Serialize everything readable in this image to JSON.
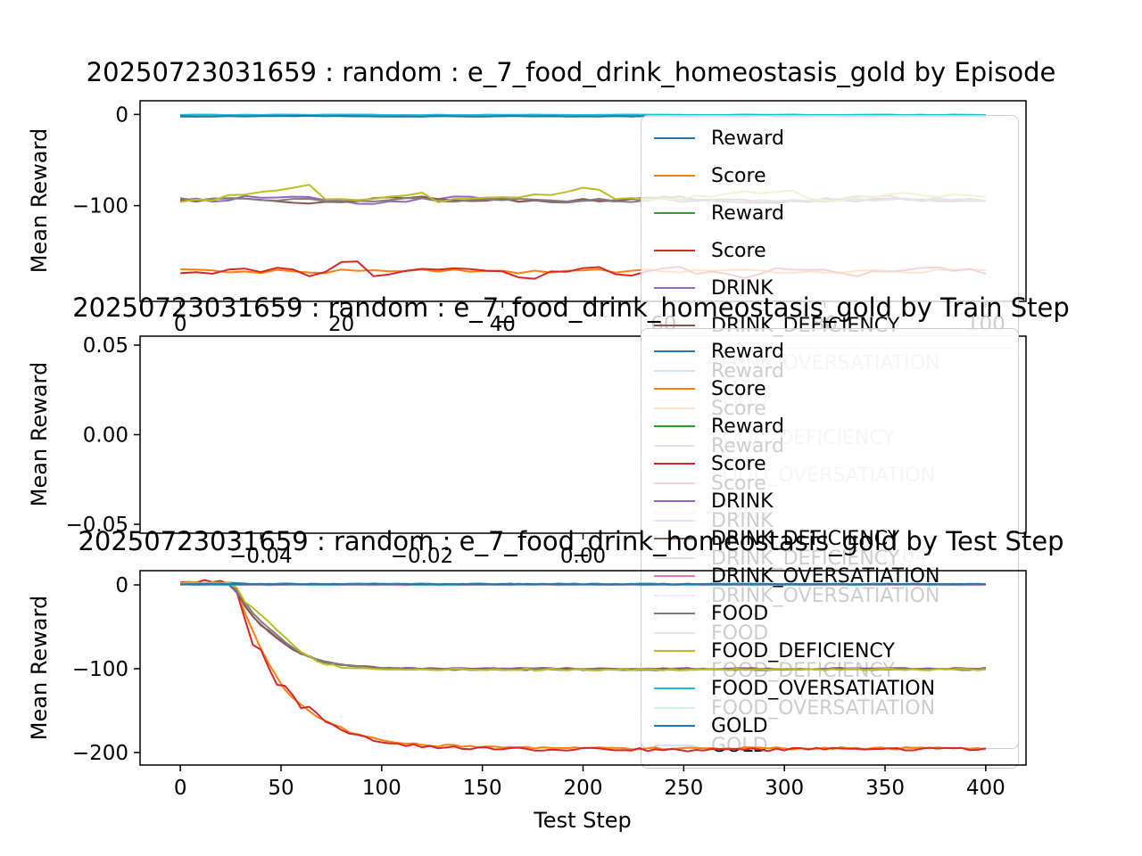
{
  "chart_data": [
    {
      "type": "line",
      "title": "20250723031659 : random : e_7_food_drink_homeostasis_gold by Episode",
      "xlabel": "",
      "ylabel": "Mean Reward",
      "xlim": [
        -5,
        105
      ],
      "ylim": [
        -205,
        15
      ],
      "xticks": [
        "0",
        "20",
        "40",
        "60",
        "80",
        "100"
      ],
      "xtick_vals": [
        0,
        20,
        40,
        60,
        80,
        100
      ],
      "yticks": [
        "0",
        "−100"
      ],
      "ytick_vals": [
        0,
        -100
      ],
      "grid": false,
      "legend_position": "upper right overflowing",
      "sample_step": 2,
      "series": [
        {
          "label": "Reward",
          "color": "#1f77b4",
          "jitter": 0.9,
          "points": [
            [
              0,
              -1.5
            ],
            [
              100,
              -1.5
            ]
          ]
        },
        {
          "label": "Score",
          "color": "#ff7f0e",
          "jitter": 2.2,
          "points": [
            [
              0,
              -172
            ],
            [
              100,
              -172
            ]
          ]
        },
        {
          "label": "Reward",
          "color": "#2ca02c",
          "jitter": 0.7,
          "points": [
            [
              0,
              -1
            ],
            [
              100,
              -1
            ]
          ]
        },
        {
          "label": "Score",
          "color": "#d62728",
          "jitter": 3.5,
          "points": [
            [
              0,
              -174
            ],
            [
              14,
              -168
            ],
            [
              16,
              -176
            ],
            [
              22,
              -160
            ],
            [
              24,
              -175
            ],
            [
              34,
              -170
            ],
            [
              44,
              -178
            ],
            [
              52,
              -165
            ],
            [
              54,
              -176
            ],
            [
              62,
              -170
            ],
            [
              70,
              -177
            ],
            [
              76,
              -168
            ],
            [
              84,
              -176
            ],
            [
              92,
              -170
            ],
            [
              100,
              -173
            ]
          ]
        },
        {
          "label": "DRINK",
          "color": "#9467bd",
          "jitter": 2.6,
          "points": [
            [
              0,
              -95
            ],
            [
              12,
              -90
            ],
            [
              22,
              -97
            ],
            [
              36,
              -91
            ],
            [
              48,
              -96
            ],
            [
              60,
              -92
            ],
            [
              72,
              -97
            ],
            [
              86,
              -91
            ],
            [
              100,
              -95
            ]
          ]
        },
        {
          "label": "DRINK_DEFICIENCY",
          "color": "#8c564b",
          "jitter": 2.6,
          "points": [
            [
              0,
              -93
            ],
            [
              18,
              -96
            ],
            [
              30,
              -90
            ],
            [
              44,
              -96
            ],
            [
              58,
              -91
            ],
            [
              74,
              -96
            ],
            [
              88,
              -92
            ],
            [
              100,
              -94
            ]
          ]
        },
        {
          "label": "DRINK_OVERSATIATION",
          "color": "#e377c2",
          "jitter": 0.4,
          "points": [
            [
              0,
              -0.8
            ],
            [
              100,
              -0.8
            ]
          ]
        },
        {
          "label": "FOOD",
          "color": "#7f7f7f",
          "jitter": 2.2,
          "points": [
            [
              0,
              -94
            ],
            [
              100,
              -94
            ]
          ]
        },
        {
          "label": "FOOD_DEFICIENCY",
          "color": "#bcbd22",
          "jitter": 2.8,
          "points": [
            [
              0,
              -95
            ],
            [
              8,
              -89
            ],
            [
              16,
              -79
            ],
            [
              18,
              -95
            ],
            [
              30,
              -86
            ],
            [
              32,
              -96
            ],
            [
              44,
              -88
            ],
            [
              52,
              -80
            ],
            [
              54,
              -94
            ],
            [
              66,
              -89
            ],
            [
              76,
              -81
            ],
            [
              78,
              -95
            ],
            [
              88,
              -87
            ],
            [
              100,
              -92
            ]
          ]
        },
        {
          "label": "FOOD_OVERSATIATION",
          "color": "#17becf",
          "jitter": 0.35,
          "points": [
            [
              0,
              -0.5
            ],
            [
              100,
              -0.5
            ]
          ]
        },
        {
          "label": "GOLD",
          "color": "#1f77b4",
          "jitter": 0.5,
          "points": [
            [
              0,
              -2
            ],
            [
              100,
              -2
            ]
          ]
        }
      ]
    },
    {
      "type": "line",
      "title": "20250723031659 : random : e_7_food_drink_homeostasis_gold by Train Step",
      "xlabel": "",
      "ylabel": "Mean Reward",
      "xlim": [
        -0.055,
        0.055
      ],
      "ylim": [
        -0.055,
        0.055
      ],
      "xticks": [
        "−0.04",
        "−0.02",
        "0.00",
        "0.02",
        "0.04"
      ],
      "xtick_vals": [
        -0.04,
        -0.02,
        0,
        0.02,
        0.04
      ],
      "yticks": [
        "0.05",
        "0.00",
        "−0.05"
      ],
      "ytick_vals": [
        0.05,
        0,
        -0.05
      ],
      "grid": false,
      "note": "empty axes, no data plotted",
      "sample_step": 1,
      "series": []
    },
    {
      "type": "line",
      "title": "20250723031659 : random : e_7_food_drink_homeostasis_gold by Test Step",
      "xlabel": "Test Step",
      "ylabel": "Mean Reward",
      "xlim": [
        -20,
        420
      ],
      "ylim": [
        -215,
        17
      ],
      "xticks": [
        "0",
        "50",
        "100",
        "150",
        "200",
        "250",
        "300",
        "350",
        "400"
      ],
      "xtick_vals": [
        0,
        50,
        100,
        150,
        200,
        250,
        300,
        350,
        400
      ],
      "yticks": [
        "0",
        "−100",
        "−200"
      ],
      "ytick_vals": [
        0,
        -100,
        -200
      ],
      "grid": false,
      "sample_step": 4,
      "series": [
        {
          "label": "Reward",
          "color": "#1f77b4",
          "jitter": 0.8,
          "points": [
            [
              0,
              2
            ],
            [
              24,
              2
            ],
            [
              30,
              1
            ],
            [
              400,
              0.5
            ]
          ]
        },
        {
          "label": "Score",
          "color": "#ff7f0e",
          "jitter": 1.4,
          "points": [
            [
              0,
              2
            ],
            [
              24,
              2
            ],
            [
              28,
              -10
            ],
            [
              36,
              -55
            ],
            [
              44,
              -95
            ],
            [
              52,
              -125
            ],
            [
              62,
              -148
            ],
            [
              72,
              -162
            ],
            [
              84,
              -175
            ],
            [
              100,
              -186
            ],
            [
              120,
              -191
            ],
            [
              160,
              -194
            ],
            [
              220,
              -195
            ],
            [
              400,
              -195
            ]
          ]
        },
        {
          "label": "Reward",
          "color": "#2ca02c",
          "jitter": 0.5,
          "points": [
            [
              0,
              1
            ],
            [
              400,
              0.8
            ]
          ]
        },
        {
          "label": "Score",
          "color": "#d62728",
          "jitter": 1.8,
          "points": [
            [
              0,
              2
            ],
            [
              4,
              5
            ],
            [
              8,
              3
            ],
            [
              12,
              6
            ],
            [
              16,
              3
            ],
            [
              20,
              5
            ],
            [
              24,
              3
            ],
            [
              27,
              2
            ],
            [
              29,
              -20
            ],
            [
              31,
              -48
            ],
            [
              33,
              -35
            ],
            [
              35,
              -65
            ],
            [
              37,
              -78
            ],
            [
              39,
              -70
            ],
            [
              41,
              -85
            ],
            [
              45,
              -105
            ],
            [
              49,
              -122
            ],
            [
              53,
              -118
            ],
            [
              57,
              -138
            ],
            [
              61,
              -150
            ],
            [
              65,
              -146
            ],
            [
              69,
              -158
            ],
            [
              75,
              -167
            ],
            [
              81,
              -174
            ],
            [
              89,
              -181
            ],
            [
              99,
              -187
            ],
            [
              111,
              -191
            ],
            [
              131,
              -194
            ],
            [
              161,
              -196
            ],
            [
              201,
              -196
            ],
            [
              261,
              -197
            ],
            [
              321,
              -196
            ],
            [
              400,
              -196
            ]
          ]
        },
        {
          "label": "DRINK",
          "color": "#9467bd",
          "jitter": 0.9,
          "points": [
            [
              0,
              1
            ],
            [
              26,
              1
            ],
            [
              30,
              -18
            ],
            [
              36,
              -38
            ],
            [
              42,
              -52
            ],
            [
              50,
              -68
            ],
            [
              58,
              -80
            ],
            [
              68,
              -90
            ],
            [
              80,
              -96
            ],
            [
              96,
              -99
            ],
            [
              120,
              -100
            ],
            [
              400,
              -100
            ]
          ]
        },
        {
          "label": "DRINK_DEFICIENCY",
          "color": "#8c564b",
          "jitter": 0.9,
          "points": [
            [
              0,
              1
            ],
            [
              26,
              1
            ],
            [
              32,
              -25
            ],
            [
              40,
              -48
            ],
            [
              48,
              -63
            ],
            [
              58,
              -80
            ],
            [
              70,
              -91
            ],
            [
              86,
              -97
            ],
            [
              110,
              -100
            ],
            [
              400,
              -100
            ]
          ]
        },
        {
          "label": "DRINK_OVERSATIATION",
          "color": "#e377c2",
          "jitter": 0.3,
          "points": [
            [
              0,
              0
            ],
            [
              400,
              0
            ]
          ]
        },
        {
          "label": "FOOD",
          "color": "#7f7f7f",
          "jitter": 0.9,
          "points": [
            [
              0,
              1.5
            ],
            [
              24,
              1.5
            ],
            [
              28,
              -6
            ],
            [
              34,
              -28
            ],
            [
              40,
              -44
            ],
            [
              48,
              -60
            ],
            [
              56,
              -76
            ],
            [
              66,
              -88
            ],
            [
              78,
              -95
            ],
            [
              94,
              -99
            ],
            [
              120,
              -101
            ],
            [
              400,
              -101
            ]
          ]
        },
        {
          "label": "FOOD_DEFICIENCY",
          "color": "#bcbd22",
          "jitter": 1.2,
          "points": [
            [
              0,
              2
            ],
            [
              24,
              2
            ],
            [
              28,
              -4
            ],
            [
              30,
              -22
            ],
            [
              34,
              -18
            ],
            [
              38,
              -38
            ],
            [
              42,
              -34
            ],
            [
              46,
              -52
            ],
            [
              50,
              -58
            ],
            [
              56,
              -72
            ],
            [
              62,
              -83
            ],
            [
              70,
              -93
            ],
            [
              80,
              -98
            ],
            [
              100,
              -101
            ],
            [
              140,
              -101
            ],
            [
              400,
              -101
            ]
          ]
        },
        {
          "label": "FOOD_OVERSATIATION",
          "color": "#17becf",
          "jitter": 0.3,
          "points": [
            [
              0,
              0.5
            ],
            [
              400,
              0.5
            ]
          ]
        },
        {
          "label": "GOLD",
          "color": "#1f77b4",
          "jitter": 0.4,
          "points": [
            [
              0,
              1
            ],
            [
              400,
              1
            ]
          ]
        }
      ]
    }
  ],
  "legend": {
    "entries": [
      {
        "label": "Reward",
        "color": "#1f77b4"
      },
      {
        "label": "Score",
        "color": "#ff7f0e"
      },
      {
        "label": "Reward",
        "color": "#2ca02c"
      },
      {
        "label": "Score",
        "color": "#d62728"
      },
      {
        "label": "DRINK",
        "color": "#9467bd"
      },
      {
        "label": "DRINK_DEFICIENCY",
        "color": "#8c564b"
      },
      {
        "label": "DRINK_OVERSATIATION",
        "color": "#e377c2"
      },
      {
        "label": "FOOD",
        "color": "#7f7f7f"
      },
      {
        "label": "FOOD_DEFICIENCY",
        "color": "#bcbd22"
      },
      {
        "label": "FOOD_OVERSATIATION",
        "color": "#17becf"
      },
      {
        "label": "GOLD",
        "color": "#1f77b4"
      }
    ]
  }
}
